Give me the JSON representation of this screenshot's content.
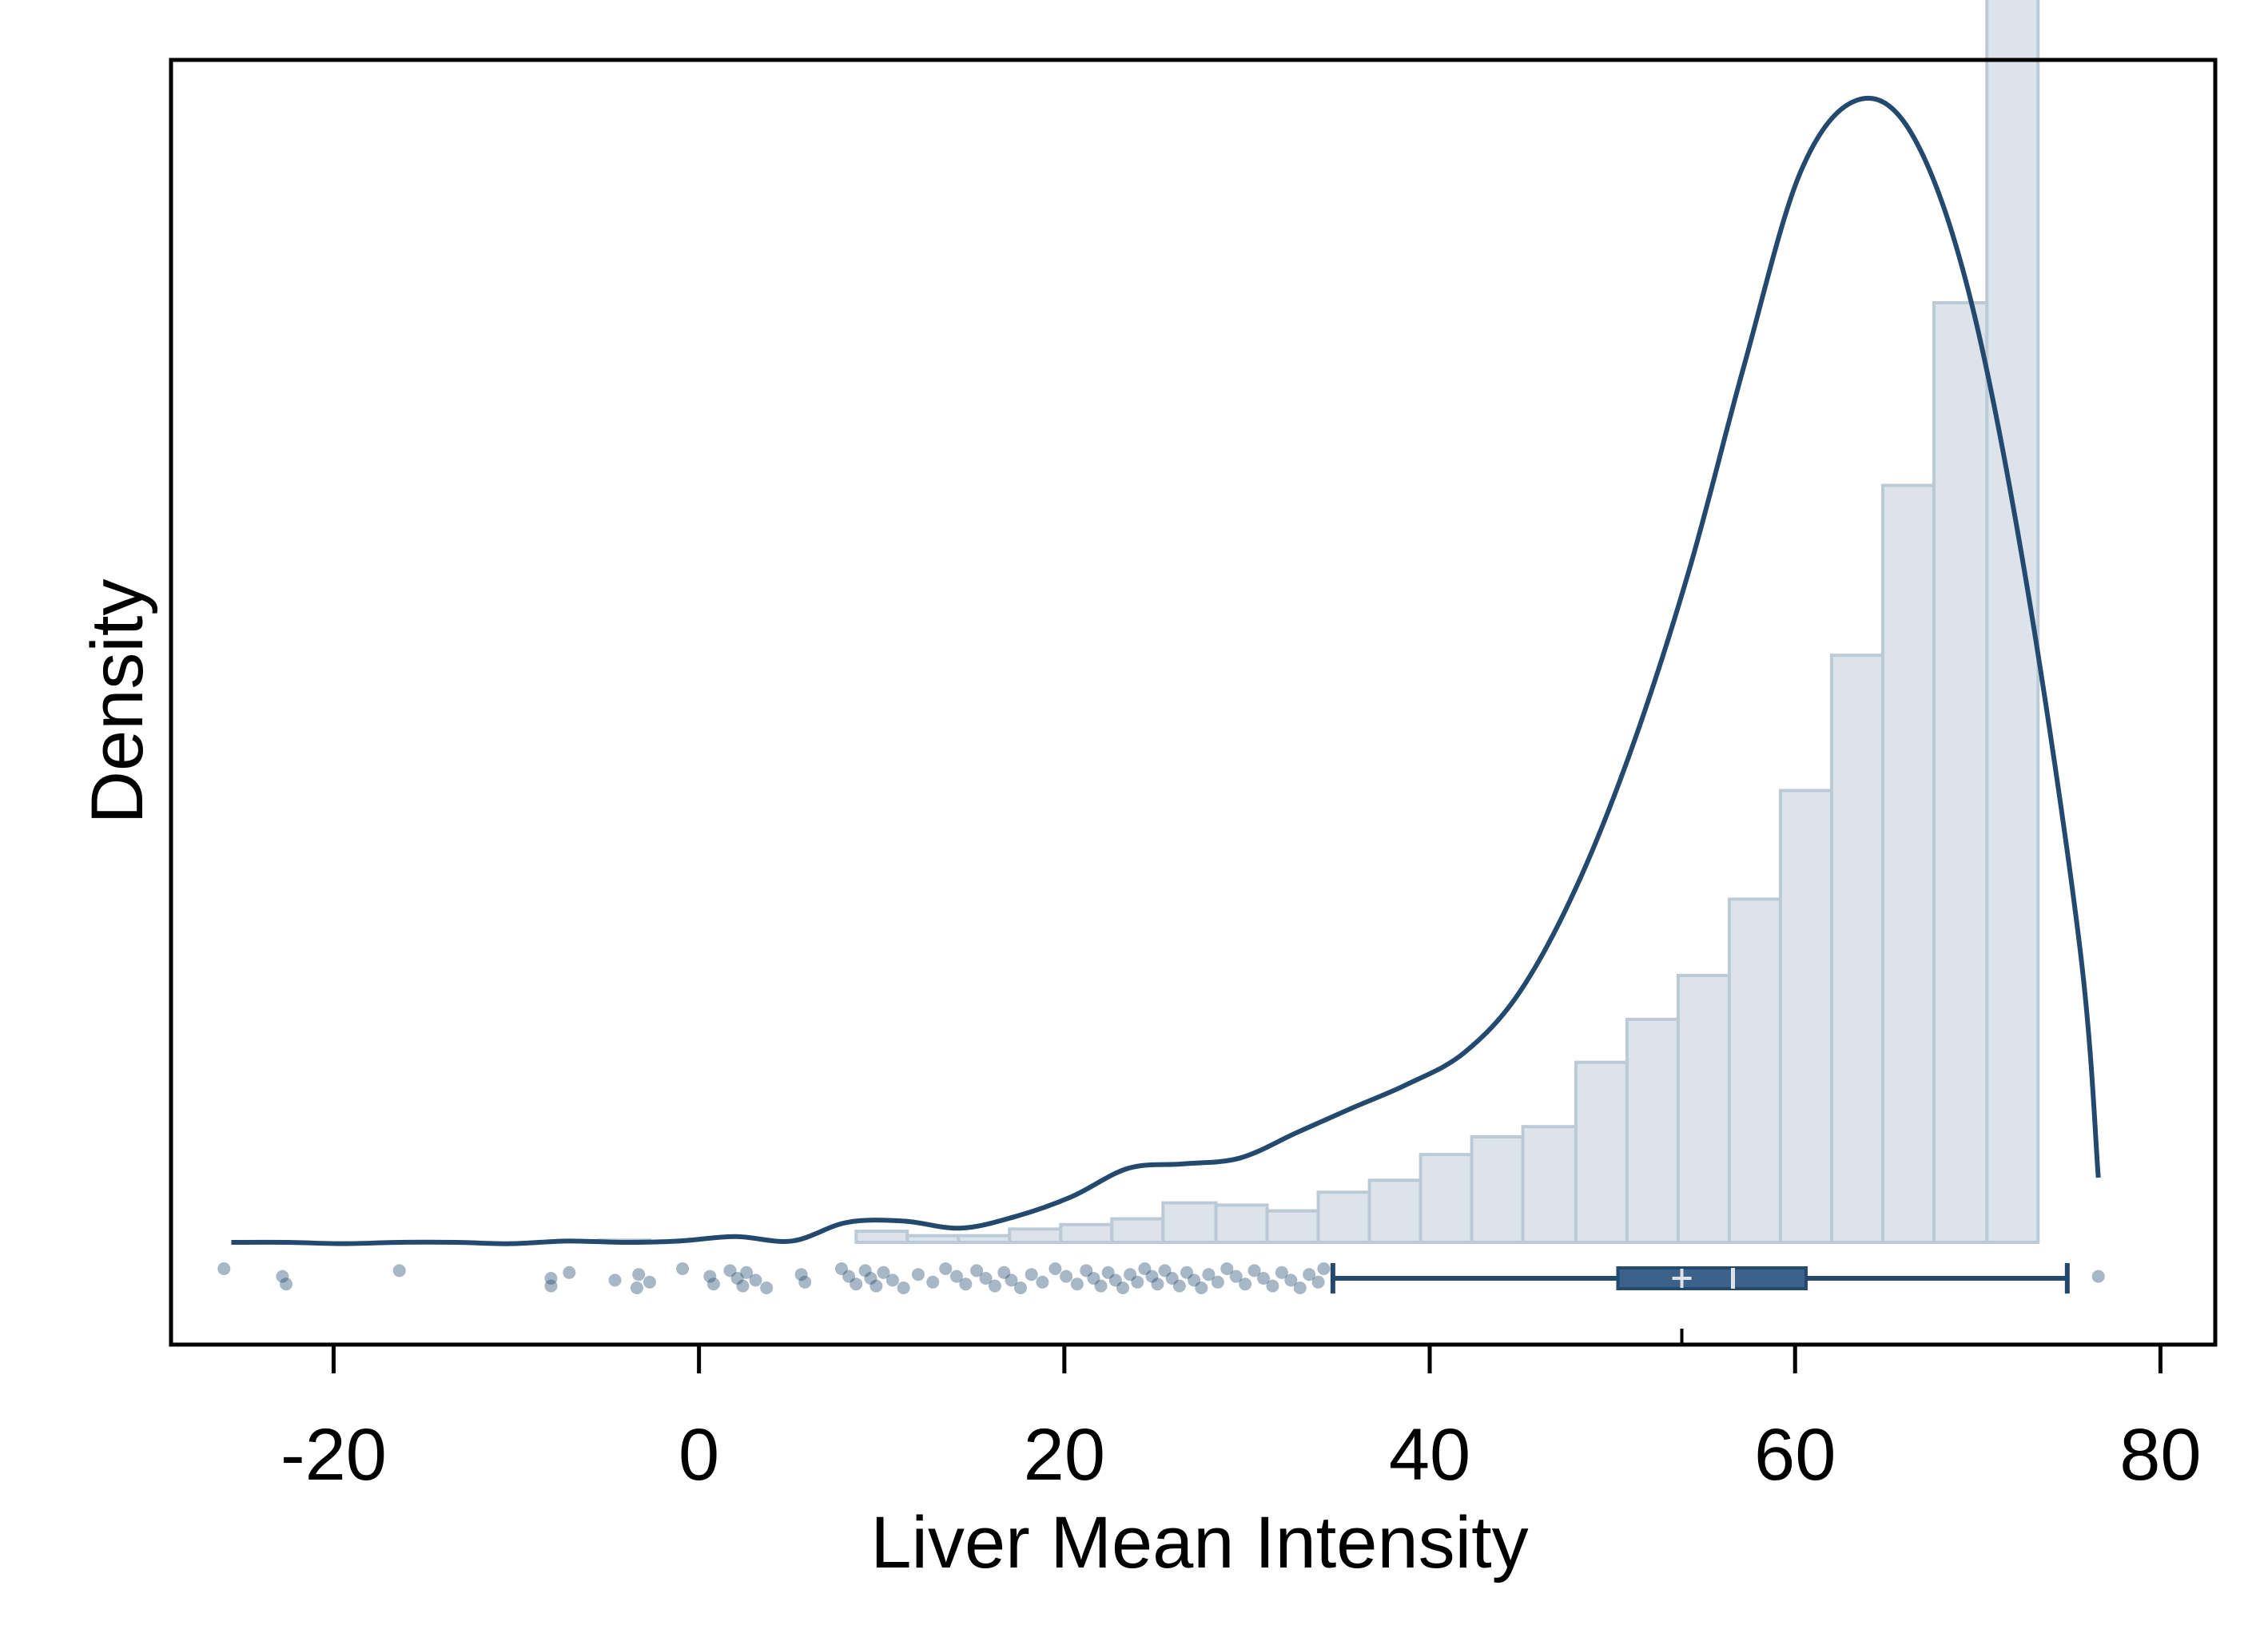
{
  "colors": {
    "background": "#ffffff",
    "hist_fill": "#dce3ea",
    "hist_stroke": "#bccad6",
    "kde_line": "#234a6e",
    "box_fill": "#3d6289",
    "box_stroke": "#234a6e",
    "median_mark": "#dce3ea",
    "points": "#234a6e",
    "frame": "#000000"
  },
  "chart_data": {
    "type": "histogram",
    "title": "",
    "xlabel": "Liver Mean Intensity",
    "ylabel": "Density",
    "xlim": [
      -28.9,
      83.0
    ],
    "xticks": [
      -20,
      0,
      20,
      40,
      60,
      80
    ],
    "xtick_labels": [
      "-20",
      "0",
      "20",
      "40",
      "60",
      "80"
    ],
    "yticks": [],
    "grid": false,
    "legend": "none",
    "histogram": {
      "bin_edges": [
        -19.6,
        -16.8,
        -14.0,
        -11.1,
        -8.3,
        -5.5,
        -2.7,
        0.1,
        2.9,
        5.7,
        8.6,
        11.4,
        14.2,
        17.0,
        19.8,
        22.6,
        25.4,
        28.3,
        31.1,
        33.9,
        36.7,
        39.5,
        42.3,
        45.1,
        48.0,
        50.8,
        53.6,
        56.4,
        59.2,
        62.0,
        64.8,
        67.6,
        70.5
      ],
      "heights": [
        0.0,
        0.0,
        0.0,
        0.0,
        0.0,
        0.05,
        0.0,
        0.0,
        0.0,
        0.0,
        0.25,
        0.15,
        0.15,
        0.3,
        0.4,
        0.53,
        0.89,
        0.84,
        0.71,
        1.13,
        1.4,
        1.98,
        2.38,
        2.61,
        4.06,
        5.03,
        6.02,
        7.74,
        10.19,
        13.24,
        17.07,
        21.19,
        30.05
      ]
    },
    "kde": {
      "x": [
        -25.6,
        -22.5,
        -19.5,
        -16.4,
        -13.3,
        -10.3,
        -7.2,
        -4.1,
        -1.1,
        2.0,
        5.1,
        8.1,
        11.2,
        14.3,
        17.3,
        20.4,
        23.5,
        26.5,
        29.6,
        32.7,
        35.7,
        38.8,
        41.9,
        44.9,
        48.0,
        51.1,
        54.2,
        57.2,
        60.3,
        63.4,
        66.4,
        69.5,
        72.6,
        75.6,
        76.6
      ],
      "y": [
        0.0,
        0.0,
        -0.03,
        0.0,
        0.0,
        -0.03,
        0.03,
        0.0,
        0.03,
        0.13,
        0.03,
        0.45,
        0.48,
        0.32,
        0.58,
        1.03,
        1.67,
        1.77,
        1.9,
        2.47,
        3.02,
        3.57,
        4.28,
        5.63,
        7.99,
        11.19,
        15.16,
        19.76,
        24.14,
        25.76,
        24.99,
        21.44,
        15.03,
        6.61,
        1.46
      ]
    },
    "boxplot": {
      "whisker_low": 34.7,
      "q1": 50.3,
      "median": 56.6,
      "mean": 53.8,
      "q3": 60.6,
      "whisker_high": 74.9,
      "outliers": [
        -26.0,
        -22.8,
        -22.6,
        -16.4,
        -8.1,
        -8.1,
        -7.1,
        -4.6,
        -3.4,
        -3.3,
        -2.7,
        -0.9,
        0.6,
        0.8,
        1.7,
        2.1,
        2.4,
        2.6,
        3.1,
        3.7,
        5.6,
        5.8,
        7.8,
        8.2,
        8.6,
        9.1,
        9.4,
        9.7,
        10.1,
        10.6,
        11.2,
        12.0,
        12.8,
        13.5,
        14.1,
        14.6,
        15.2,
        15.7,
        16.2,
        16.7,
        17.1,
        17.6,
        18.2,
        18.8,
        19.5,
        20.1,
        20.7,
        21.2,
        21.6,
        22.0,
        22.4,
        22.8,
        23.2,
        23.6,
        24.0,
        24.4,
        24.8,
        25.1,
        25.5,
        25.9,
        26.3,
        26.7,
        27.1,
        27.5,
        27.9,
        28.4,
        28.9,
        29.4,
        29.9,
        30.4,
        30.9,
        31.4,
        31.9,
        32.4,
        32.9,
        33.4,
        33.9,
        34.2,
        76.6
      ]
    }
  }
}
